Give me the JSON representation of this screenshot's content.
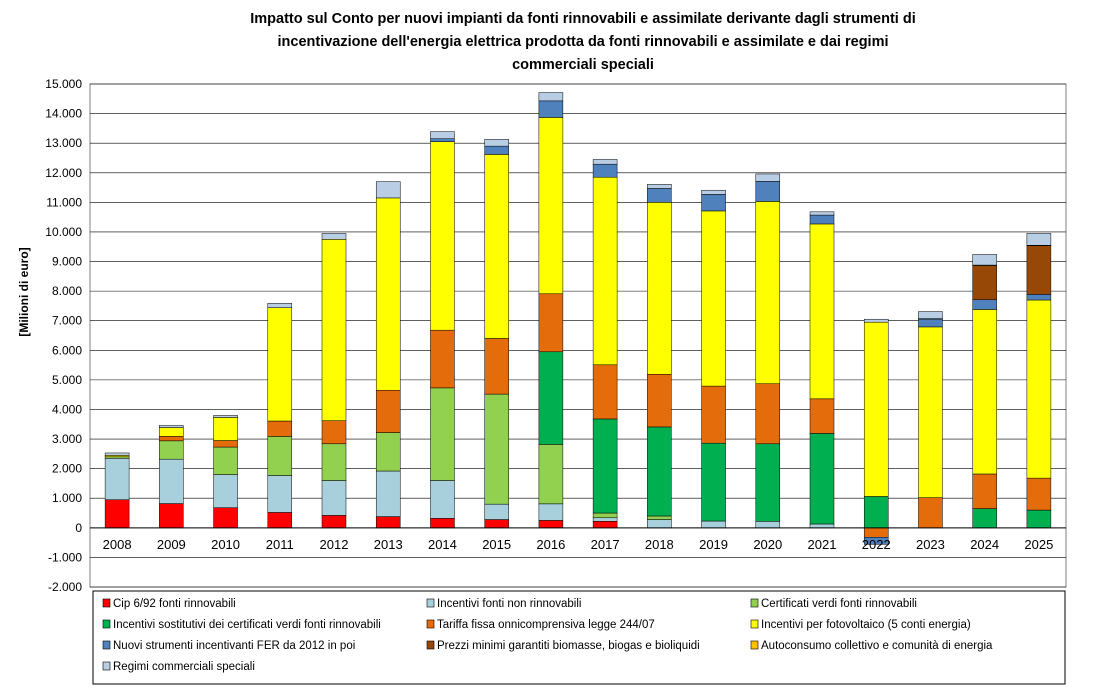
{
  "chart_data": {
    "type": "bar",
    "stacked": true,
    "title_lines": [
      "Impatto sul Conto per nuovi impianti da fonti rinnovabili e assimilate derivante dagli strumenti di",
      "incentivazione dell'energia elettrica prodotta da fonti rinnovabili e assimilate e dai regimi",
      "commerciali speciali"
    ],
    "ylabel": "[Milioni di euro]",
    "ylim": [
      -2000,
      15000
    ],
    "ytick_step": 1000,
    "ytick_labels": [
      "-2.000",
      "-1.000",
      "0",
      "1.000",
      "2.000",
      "3.000",
      "4.000",
      "5.000",
      "6.000",
      "7.000",
      "8.000",
      "9.000",
      "10.000",
      "11.000",
      "12.000",
      "13.000",
      "14.000",
      "15.000"
    ],
    "grid": true,
    "legend_position": "bottom",
    "categories": [
      "2008",
      "2009",
      "2010",
      "2011",
      "2012",
      "2013",
      "2014",
      "2015",
      "2016",
      "2017",
      "2018",
      "2019",
      "2020",
      "2021",
      "2022",
      "2023",
      "2024",
      "2025"
    ],
    "series": [
      {
        "name": "Cip 6/92 fonti rinnovabili",
        "color": "#ff0000",
        "values": [
          950,
          820,
          680,
          520,
          420,
          380,
          320,
          280,
          250,
          220,
          0,
          0,
          0,
          0,
          0,
          0,
          0,
          0
        ]
      },
      {
        "name": "Incentivi fonti non rinnovabili",
        "color": "#a8d0dc",
        "values": [
          1400,
          1500,
          1120,
          1250,
          1180,
          1540,
          1280,
          520,
          560,
          120,
          280,
          230,
          220,
          130,
          0,
          0,
          0,
          0
        ]
      },
      {
        "name": "Certificati verdi fonti rinnovabili",
        "color": "#92d050",
        "values": [
          50,
          620,
          930,
          1320,
          1240,
          1300,
          3130,
          3720,
          2010,
          160,
          120,
          0,
          0,
          0,
          0,
          0,
          0,
          0
        ]
      },
      {
        "name": "Incentivi sostitutivi dei certificati verdi fonti rinnovabili",
        "color": "#00b050",
        "values": [
          0,
          0,
          0,
          0,
          0,
          0,
          0,
          0,
          3130,
          3180,
          3010,
          2630,
          2620,
          3060,
          1060,
          0,
          650,
          600
        ]
      },
      {
        "name": "Tariffa fissa onnicomprensiva legge 244/07",
        "color": "#e46c0a",
        "values": [
          0,
          150,
          220,
          520,
          780,
          1430,
          1950,
          1880,
          1960,
          1830,
          1780,
          1930,
          2030,
          1170,
          -320,
          1020,
          1170,
          1080
        ]
      },
      {
        "name": "Incentivi per fotovoltaico (5 conti energia)",
        "color": "#ffff00",
        "values": [
          50,
          300,
          780,
          3830,
          6130,
          6500,
          6370,
          6220,
          5960,
          6340,
          5810,
          5920,
          6160,
          5910,
          5890,
          5770,
          5560,
          6020
        ]
      },
      {
        "name": "Nuovi strumenti incentivanti FER da 2012 in poi",
        "color": "#4f81bd",
        "values": [
          0,
          0,
          0,
          0,
          0,
          0,
          100,
          280,
          560,
          440,
          470,
          560,
          680,
          300,
          -240,
          270,
          330,
          190
        ]
      },
      {
        "name": "Prezzi minimi garantiti biomasse, biogas e bioliquidi",
        "color": "#974806",
        "values": [
          0,
          0,
          0,
          0,
          0,
          0,
          0,
          0,
          0,
          0,
          0,
          0,
          0,
          0,
          0,
          0,
          1160,
          1650
        ]
      },
      {
        "name": "Autoconsumo collettivo e comunità di energia",
        "color": "#ffc000",
        "values": [
          0,
          0,
          0,
          0,
          0,
          0,
          0,
          0,
          0,
          0,
          0,
          0,
          0,
          0,
          0,
          10,
          10,
          10
        ]
      },
      {
        "name": "Regimi commerciali speciali",
        "color": "#b9cde5",
        "values": [
          80,
          70,
          70,
          150,
          200,
          550,
          240,
          230,
          280,
          160,
          140,
          140,
          250,
          110,
          100,
          240,
          360,
          400
        ]
      }
    ]
  }
}
